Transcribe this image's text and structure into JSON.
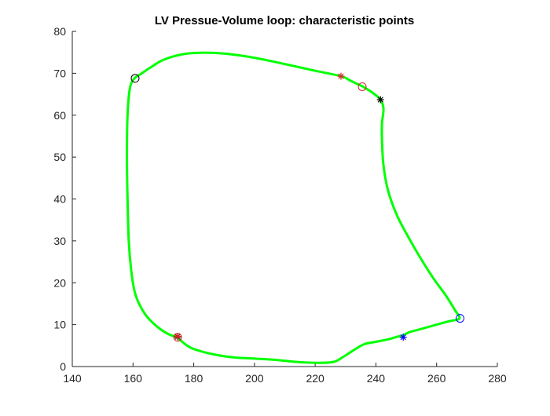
{
  "chart_data": {
    "type": "line",
    "title": "LV Pressue-Volume loop: characteristic points",
    "xlabel": "",
    "ylabel": "",
    "xlim": [
      140,
      280
    ],
    "ylim": [
      0,
      80
    ],
    "xticks": [
      140,
      160,
      180,
      200,
      220,
      240,
      260,
      280
    ],
    "yticks": [
      0,
      10,
      20,
      30,
      40,
      50,
      60,
      70,
      80
    ],
    "grid": false,
    "series": [
      {
        "color": "#00ff00",
        "x": [
          174.5,
          179,
          186,
          193,
          200,
          207,
          214,
          221,
          226,
          229,
          232,
          236,
          240,
          244,
          247,
          249,
          251,
          254,
          259,
          264,
          267.5,
          266,
          263,
          259,
          255,
          251,
          247,
          244,
          242.5,
          242,
          242,
          242.5,
          241.5,
          239,
          236,
          235.5,
          232,
          228.5,
          220,
          210,
          200,
          190,
          182,
          176,
          170,
          166,
          162.5,
          160.5,
          159,
          158.2,
          158,
          158.2,
          158.6,
          159.4,
          160.5,
          162,
          164.5,
          168,
          171.5,
          174.5
        ],
        "y": [
          7,
          4.5,
          3,
          2.2,
          1.9,
          1.6,
          1.1,
          0.9,
          1.1,
          2.2,
          3.6,
          5.3,
          5.9,
          6.5,
          7.1,
          7.5,
          8.2,
          8.8,
          9.8,
          10.8,
          11.5,
          13.5,
          17,
          21,
          25.5,
          30.5,
          36,
          42,
          48,
          54,
          58,
          61.5,
          63.7,
          65.3,
          66.7,
          66.9,
          68.1,
          69.3,
          70.6,
          72.2,
          73.7,
          74.7,
          74.9,
          74.5,
          73.2,
          71.5,
          69.8,
          68.8,
          66.5,
          60,
          50,
          40,
          30,
          23,
          18,
          15,
          12,
          9.5,
          7.8,
          7
        ]
      }
    ],
    "markers": [
      {
        "shape": "circle",
        "color": "#000000",
        "x": 160.7,
        "y": 68.8
      },
      {
        "shape": "star",
        "color": "#d62728",
        "x": 228.5,
        "y": 69.3
      },
      {
        "shape": "circle",
        "color": "#d62728",
        "x": 235.5,
        "y": 66.8
      },
      {
        "shape": "star",
        "color": "#000000",
        "x": 241.5,
        "y": 63.7
      },
      {
        "shape": "circle",
        "color": "#0000ff",
        "x": 267.7,
        "y": 11.5
      },
      {
        "shape": "star",
        "color": "#0000ff",
        "x": 249,
        "y": 7
      },
      {
        "shape": "circle",
        "color": "#d62728",
        "x": 174.7,
        "y": 7
      },
      {
        "shape": "star",
        "color": "#000000",
        "x": 174.7,
        "y": 7.1
      },
      {
        "shape": "star",
        "color": "#d62728",
        "x": 174.7,
        "y": 7.2
      }
    ]
  }
}
